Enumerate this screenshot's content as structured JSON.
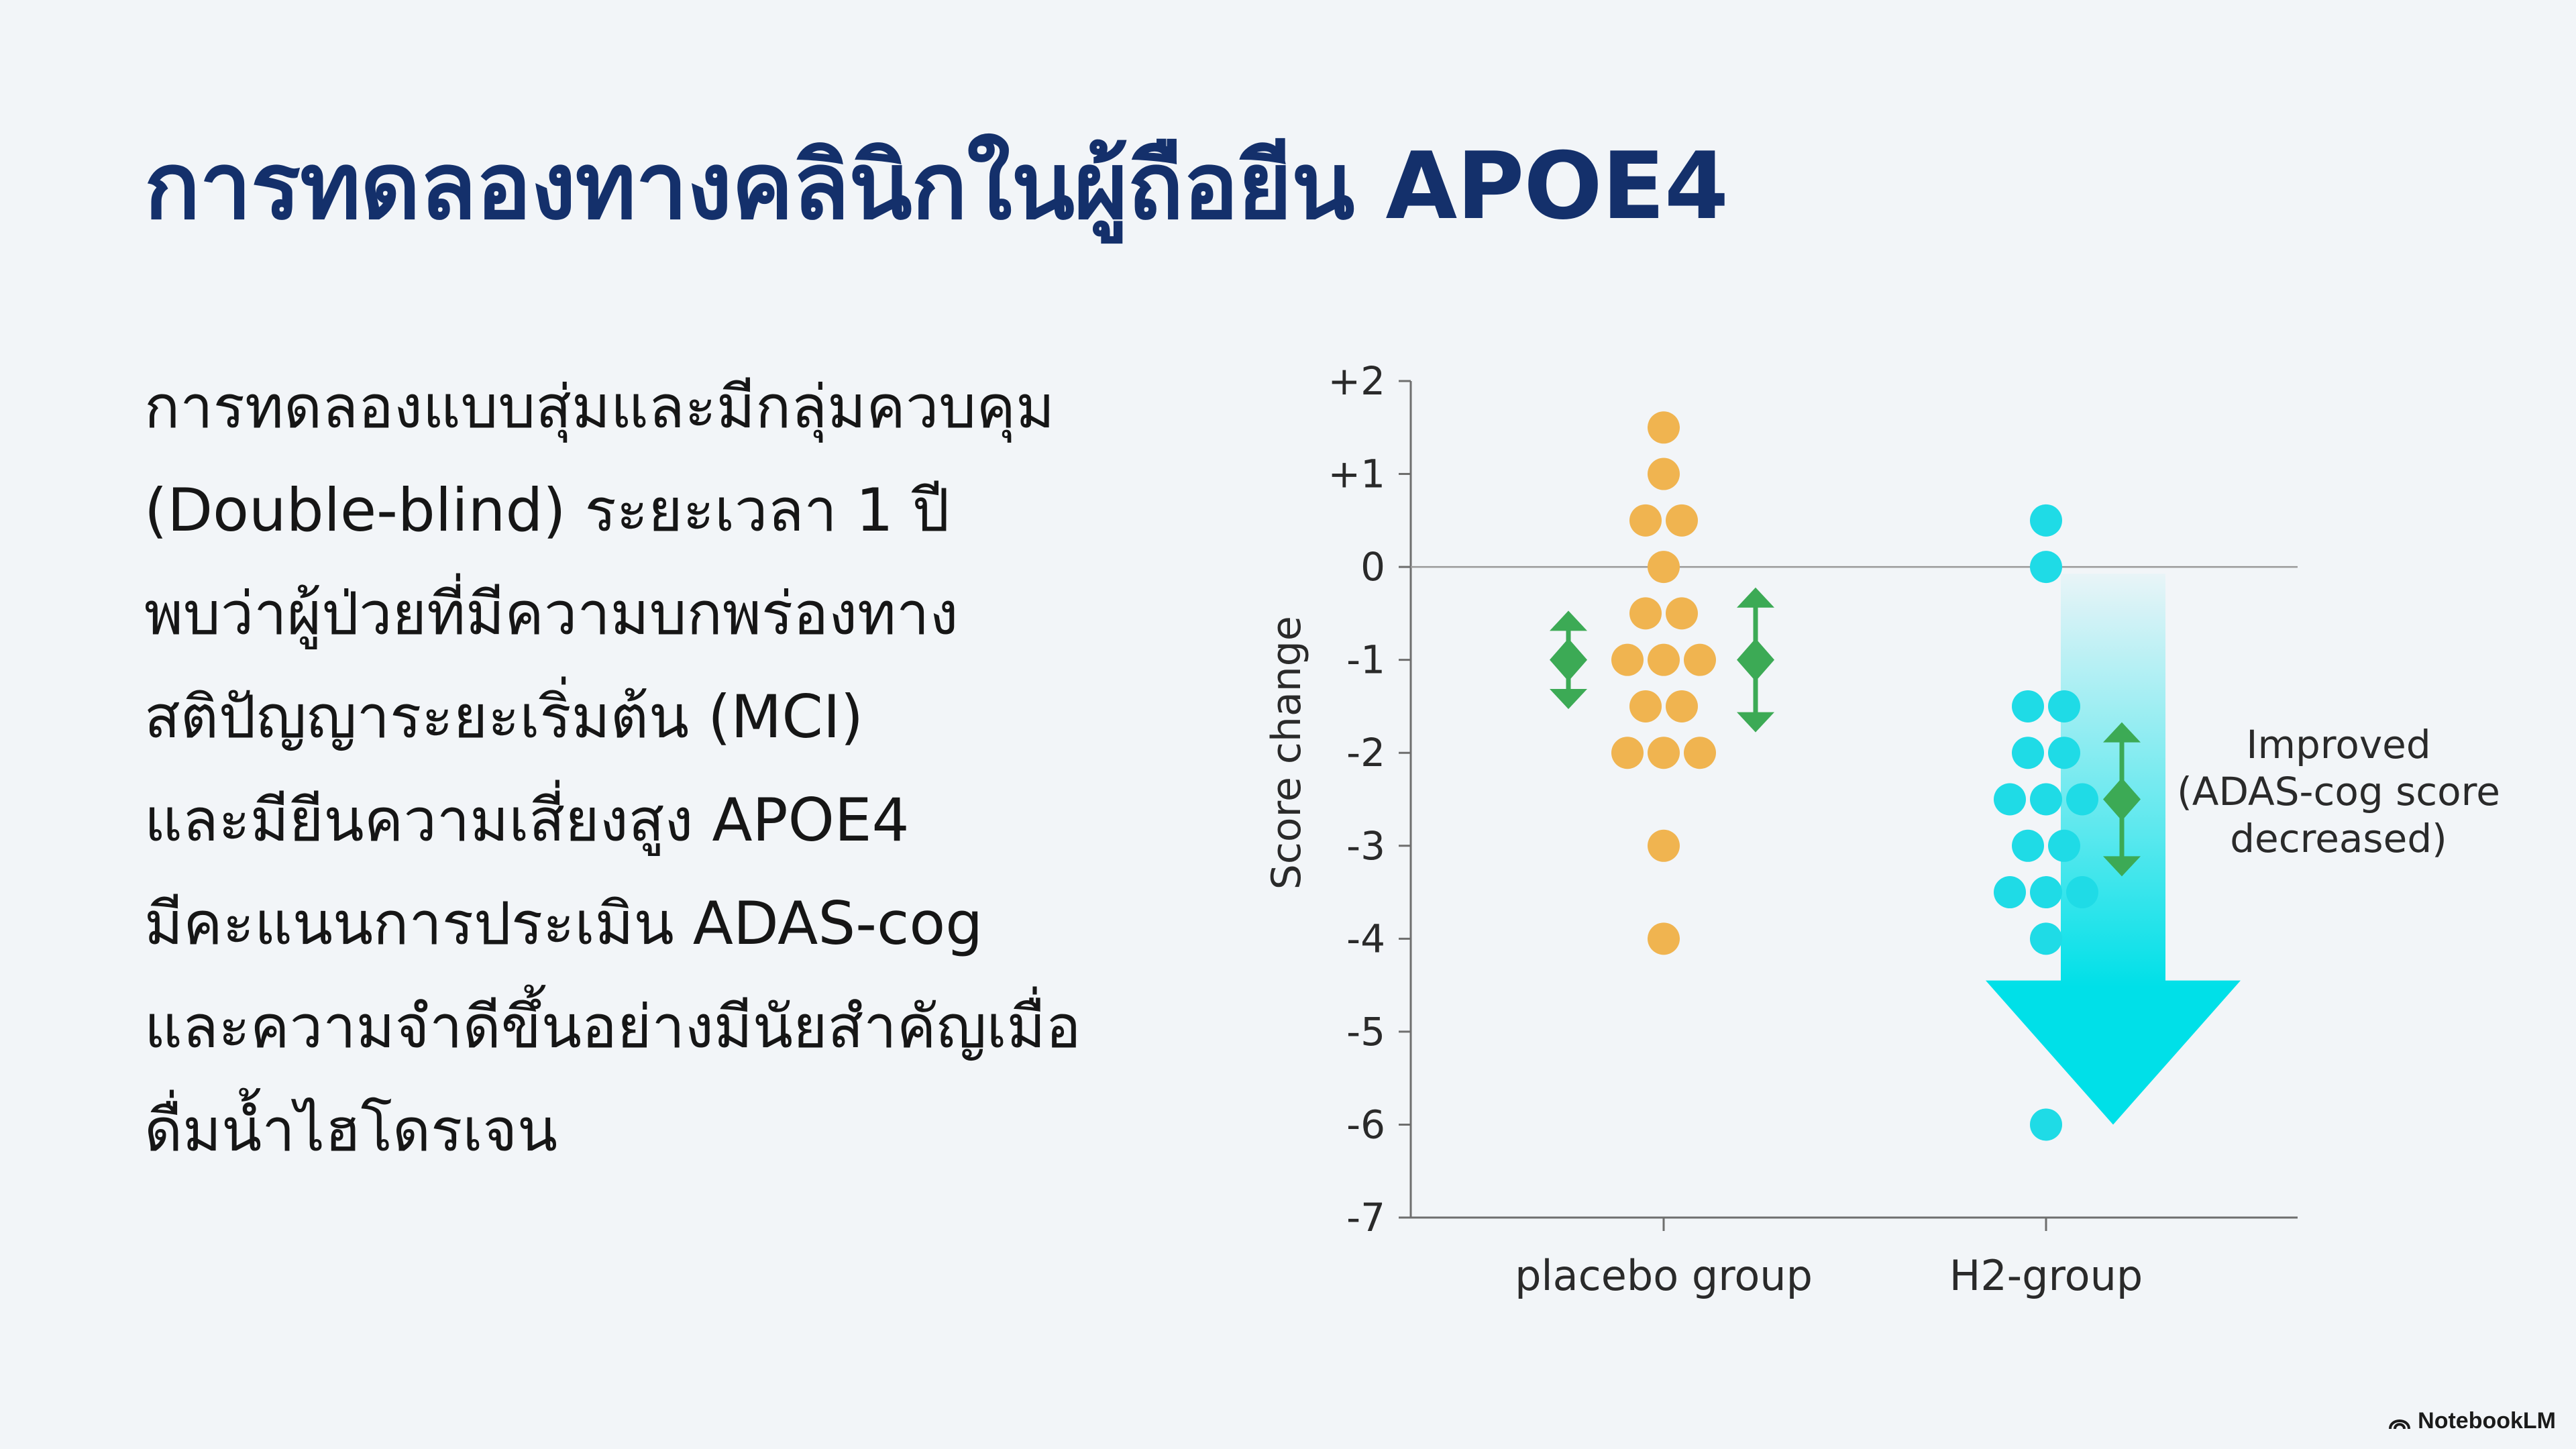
{
  "slide": {
    "title": "การทดลองทางคลินิกในผู้ถือยีน APOE4",
    "body_lines": [
      "การทดลองแบบสุ่มและมีกลุ่มควบคุม",
      "(Double-blind) ระยะเวลา 1 ปี",
      "พบว่าผู้ป่วยที่มีความบกพร่องทาง",
      "สติปัญญาระยะเริ่มต้น (MCI)",
      "และมียีนความเสี่ยงสูง APOE4",
      "มีคะแนนการประเมิน ADAS-cog",
      "และความจำดีขึ้นอย่างมีนัยสำคัญเมื่อ",
      "ดื่มน้ำไฮโดรเจน"
    ],
    "brand": "NotebookLM"
  },
  "chart_data": {
    "type": "scatter",
    "ylabel": "Score change",
    "ylim": [
      -7,
      2
    ],
    "ytick_labels": [
      "+2",
      "+1",
      "0",
      "-1",
      "-2",
      "-3",
      "-4",
      "-5",
      "-6",
      "-7"
    ],
    "ytick_values": [
      2,
      1,
      0,
      -1,
      -2,
      -3,
      -4,
      -5,
      -6,
      -7
    ],
    "categories": [
      "placebo group",
      "H2-group"
    ],
    "zero_line": true,
    "series": [
      {
        "category": "placebo group",
        "color": "#f0b450",
        "points": [
          1.5,
          1,
          0.5,
          0.5,
          0,
          -0.5,
          -0.5,
          -1,
          -1,
          -1,
          -1.5,
          -1.5,
          -2,
          -2,
          -2,
          -3,
          -4
        ]
      },
      {
        "category": "H2-group",
        "color": "#1fdbe6",
        "points": [
          0.5,
          0,
          -1.5,
          -1.5,
          -2,
          -2,
          -2.5,
          -2.5,
          -2.5,
          -3,
          -3,
          -3.5,
          -3.5,
          -3.5,
          -4,
          -6
        ]
      }
    ],
    "range_markers": [
      {
        "position": "placebo-left",
        "center": -1,
        "low": -1.5,
        "high": -0.5,
        "color": "#3caa55"
      },
      {
        "position": "placebo-right",
        "center": -1,
        "low": -1.75,
        "high": -0.25,
        "color": "#3caa55"
      },
      {
        "position": "h2-right",
        "center": -2.5,
        "low": -3.3,
        "high": -1.7,
        "color": "#3caa55"
      }
    ],
    "trend_arrow": {
      "from": 0,
      "to": -6,
      "color": "#00e0e8"
    },
    "annotation_lines": [
      "Improved",
      "(ADAS-cog score",
      "decreased)"
    ]
  }
}
